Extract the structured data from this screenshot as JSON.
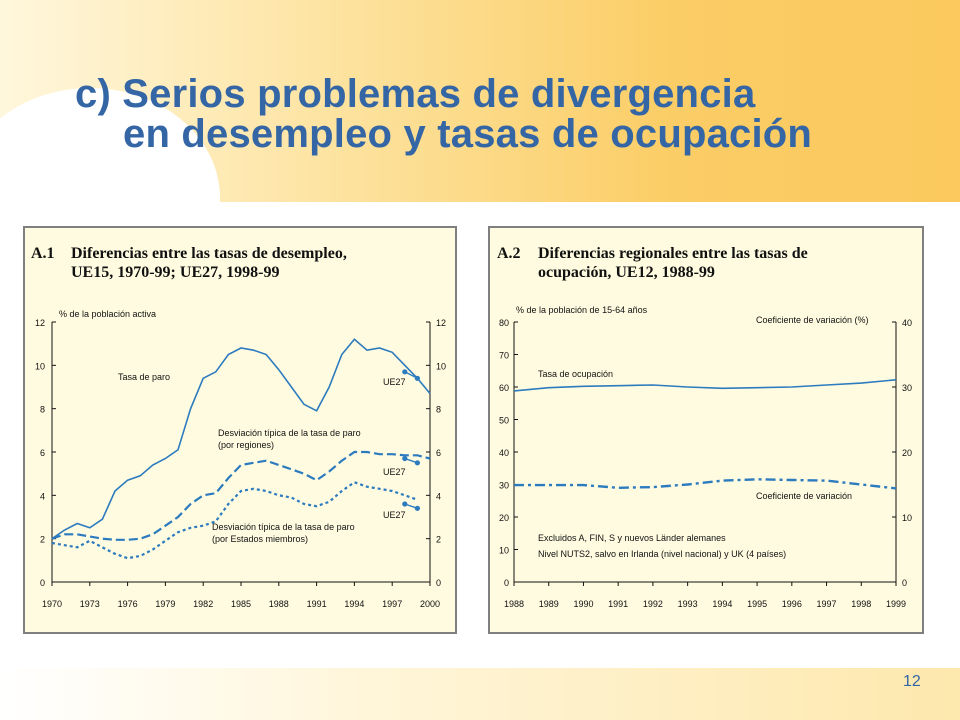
{
  "slide": {
    "title_line1": "c) Serios problemas de divergencia",
    "title_line2": "en desempleo y tasas de ocupación",
    "page_number": "12"
  },
  "colors": {
    "title": "#3465a4",
    "series": "#2c7bbf",
    "panel_bg": "#fffbe0"
  },
  "chart_data": [
    {
      "type": "line",
      "id_label": "A.1",
      "title_line1": "Diferencias entre las tasas de desempleo,",
      "title_line2": "UE15, 1970-99; UE27, 1998-99",
      "ylabel": "% de la población activa",
      "xlim": [
        1970,
        2000
      ],
      "ylim": [
        0,
        12
      ],
      "x_ticks": [
        "1970",
        "1973",
        "1976",
        "1979",
        "1982",
        "1985",
        "1988",
        "1991",
        "1994",
        "1997",
        "2000"
      ],
      "y_ticks": [
        "0",
        "2",
        "4",
        "6",
        "8",
        "10",
        "12"
      ],
      "series": [
        {
          "name": "Tasa de paro",
          "style": "solid",
          "x": [
            1970,
            1971,
            1972,
            1973,
            1974,
            1975,
            1976,
            1977,
            1978,
            1979,
            1980,
            1981,
            1982,
            1983,
            1984,
            1985,
            1986,
            1987,
            1988,
            1989,
            1990,
            1991,
            1992,
            1993,
            1994,
            1995,
            1996,
            1997,
            1998,
            1999,
            2000
          ],
          "y": [
            2.0,
            2.4,
            2.7,
            2.5,
            2.9,
            4.2,
            4.7,
            4.9,
            5.4,
            5.7,
            6.1,
            8.0,
            9.4,
            9.7,
            10.5,
            10.8,
            10.7,
            10.5,
            9.8,
            9.0,
            8.2,
            7.9,
            9.0,
            10.5,
            11.2,
            10.7,
            10.8,
            10.6,
            10.0,
            9.4,
            8.7
          ]
        },
        {
          "name": "Desviación típica de la tasa de paro (por regiones)",
          "style": "dashed",
          "x": [
            1970,
            1971,
            1972,
            1973,
            1974,
            1975,
            1976,
            1977,
            1978,
            1979,
            1980,
            1981,
            1982,
            1983,
            1984,
            1985,
            1986,
            1987,
            1988,
            1989,
            1990,
            1991,
            1992,
            1993,
            1994,
            1995,
            1996,
            1997,
            1998,
            1999,
            2000
          ],
          "y": [
            2.0,
            2.2,
            2.2,
            2.1,
            2.0,
            1.95,
            1.95,
            2.0,
            2.2,
            2.6,
            3.0,
            3.6,
            4.0,
            4.1,
            4.8,
            5.4,
            5.5,
            5.6,
            5.4,
            5.2,
            5.0,
            4.7,
            5.1,
            5.6,
            6.0,
            6.0,
            5.9,
            5.9,
            5.85,
            5.85,
            5.7
          ]
        },
        {
          "name": "Desviación típica de la tasa de paro (por Estados miembros)",
          "style": "dotted",
          "x": [
            1970,
            1971,
            1972,
            1973,
            1974,
            1975,
            1976,
            1977,
            1978,
            1979,
            1980,
            1981,
            1982,
            1983,
            1984,
            1985,
            1986,
            1987,
            1988,
            1989,
            1990,
            1991,
            1992,
            1993,
            1994,
            1995,
            1996,
            1997,
            1998,
            1999
          ],
          "y": [
            1.8,
            1.7,
            1.6,
            1.9,
            1.6,
            1.3,
            1.1,
            1.2,
            1.5,
            1.9,
            2.3,
            2.5,
            2.6,
            2.8,
            3.6,
            4.2,
            4.3,
            4.2,
            4.0,
            3.9,
            3.6,
            3.5,
            3.7,
            4.2,
            4.6,
            4.4,
            4.3,
            4.2,
            4.0,
            3.8
          ]
        }
      ],
      "ue27_points": [
        {
          "label": "UE27",
          "x": [
            1998,
            1999
          ],
          "y": [
            9.7,
            9.4
          ]
        },
        {
          "label": "UE27",
          "x": [
            1998,
            1999
          ],
          "y": [
            5.7,
            5.5
          ]
        },
        {
          "label": "UE27",
          "x": [
            1998,
            1999
          ],
          "y": [
            3.6,
            3.4
          ]
        }
      ],
      "annotations": {
        "tasa_de_paro": "Tasa de paro",
        "ue27_top": "UE27",
        "desv_regiones_1": "Desviación típica de la tasa de paro",
        "desv_regiones_2": "(por regiones)",
        "ue27_mid": "UE27",
        "ue27_bottom": "UE27",
        "desv_estados_1": "Desviación típica de la tasa de paro",
        "desv_estados_2": "(por Estados miembros)"
      }
    },
    {
      "type": "line",
      "id_label": "A.2",
      "title_line1": "Diferencias regionales entre las tasas de",
      "title_line2": "ocupación, UE12, 1988-99",
      "ylabel_left": "% de la población de 15-64 años",
      "ylabel_right": "Coeficiente de variación (%)",
      "xlim": [
        1988,
        1999
      ],
      "ylim_left": [
        0,
        80
      ],
      "ylim_right": [
        0,
        40
      ],
      "x_ticks": [
        "1988",
        "1989",
        "1990",
        "1991",
        "1992",
        "1993",
        "1994",
        "1995",
        "1996",
        "1997",
        "1998",
        "1999"
      ],
      "y_ticks_left": [
        "0",
        "10",
        "20",
        "30",
        "40",
        "50",
        "60",
        "70",
        "80"
      ],
      "y_ticks_right": [
        "0",
        "10",
        "20",
        "30",
        "40"
      ],
      "series": [
        {
          "name": "Tasa de ocupación",
          "axis": "left",
          "style": "solid",
          "x": [
            1988,
            1989,
            1990,
            1991,
            1992,
            1993,
            1994,
            1995,
            1996,
            1997,
            1998,
            1999
          ],
          "y": [
            58.8,
            59.8,
            60.2,
            60.4,
            60.6,
            60.0,
            59.6,
            59.8,
            60.0,
            60.6,
            61.2,
            62.2
          ]
        },
        {
          "name": "Coeficiente de variación",
          "axis": "right",
          "style": "dashdot",
          "x": [
            1988,
            1989,
            1990,
            1991,
            1992,
            1993,
            1994,
            1995,
            1996,
            1997,
            1998,
            1999
          ],
          "y": [
            14.9,
            14.9,
            14.9,
            14.5,
            14.6,
            15.0,
            15.6,
            15.8,
            15.7,
            15.6,
            15.0,
            14.4
          ]
        }
      ],
      "notes": [
        "Excluidos A, FIN, S y nuevos Länder alemanes",
        "Nivel NUTS2, salvo en Irlanda (nivel nacional) y UK (4 países)"
      ]
    }
  ]
}
